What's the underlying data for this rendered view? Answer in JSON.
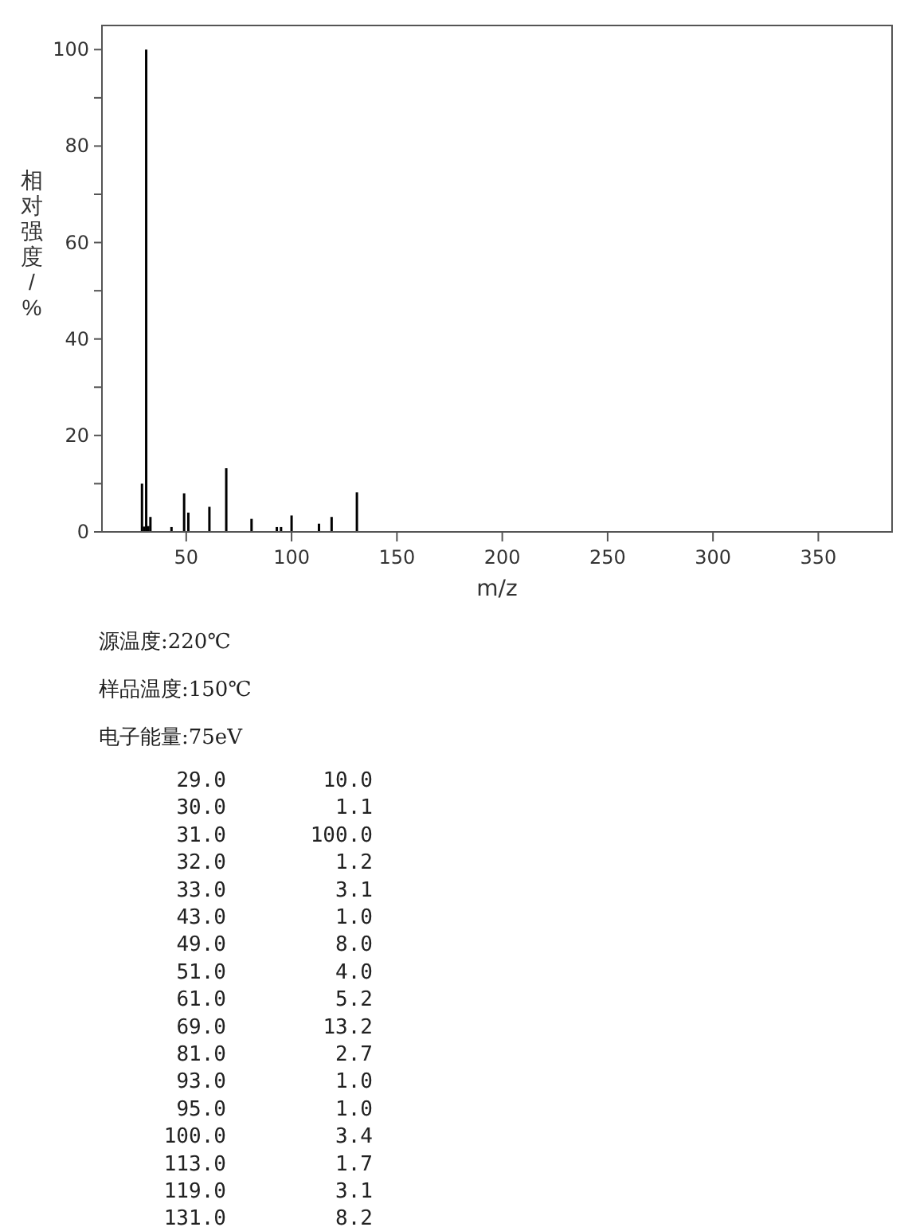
{
  "chart_data": {
    "type": "bar",
    "xlabel": "m/z",
    "ylabel": "相对强度/%",
    "x": [
      29,
      30,
      31,
      32,
      33,
      43,
      49,
      51,
      61,
      69,
      81,
      93,
      95,
      100,
      113,
      119,
      131
    ],
    "values": [
      10.0,
      1.1,
      100.0,
      1.2,
      3.1,
      1.0,
      8.0,
      4.0,
      5.2,
      13.2,
      2.7,
      1.0,
      1.0,
      3.4,
      1.7,
      3.1,
      8.2
    ],
    "color": "#000000",
    "xlim": [
      10,
      385
    ],
    "xticks": [
      50,
      100,
      150,
      200,
      250,
      300,
      350
    ],
    "ylim": [
      0,
      105
    ],
    "yticks": [
      0,
      {
        "value": 10,
        "label": null
      },
      20,
      {
        "value": 30,
        "label": null
      },
      40,
      {
        "value": 50,
        "label": null
      },
      60,
      {
        "value": 70,
        "label": null
      },
      80,
      {
        "value": 90,
        "label": null
      },
      100
    ],
    "grid": false,
    "annotations": [
      "源温度:220℃",
      "样品温度:150℃",
      "电子能量:75eV",
      "29.0",
      "10.0",
      "30.0",
      "1.1",
      "31.0",
      "100.0",
      "32.0",
      "1.2",
      "33.0",
      "3.1",
      "43.0",
      "1.0",
      "49.0",
      "8.0",
      "51.0",
      "4.0",
      "61.0",
      "5.2",
      "69.0",
      "13.2",
      "81.0",
      "2.7",
      "93.0",
      "1.0",
      "95.0",
      "1.0",
      "100.0",
      "3.4",
      "113.0",
      "1.7",
      "119.0",
      "3.1",
      "131.0",
      "8.2"
    ]
  }
}
